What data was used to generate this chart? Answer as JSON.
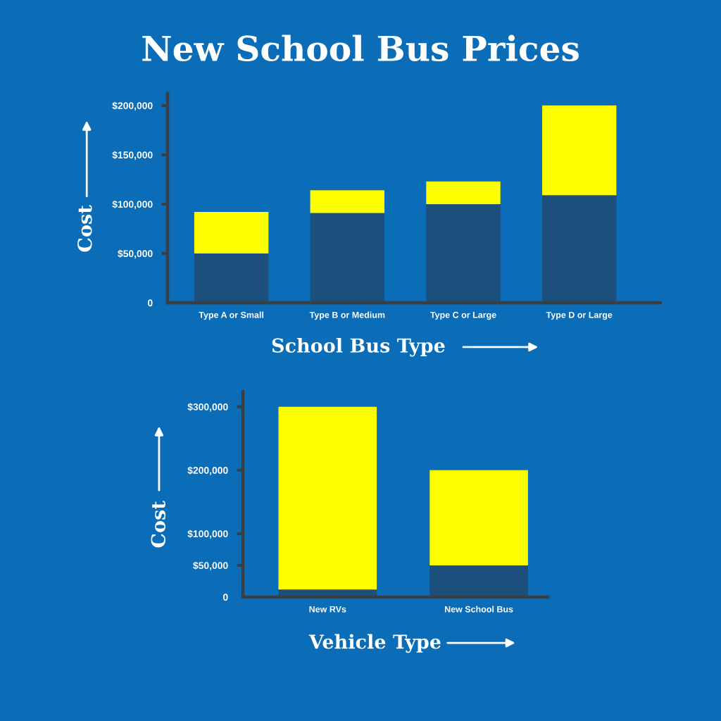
{
  "chart_data": [
    {
      "type": "bar",
      "stacked": true,
      "title": "New School Bus Prices",
      "xlabel": "School Bus Type",
      "ylabel": "Cost",
      "categories": [
        "Type A or Small",
        "Type B or Medium",
        "Type C or Large",
        "Type D or Large"
      ],
      "series": [
        {
          "color": "#1c4f7c",
          "values": [
            50000,
            91000,
            100000,
            109000
          ]
        },
        {
          "color": "#ffff00",
          "values": [
            42000,
            23000,
            23000,
            91000
          ]
        }
      ],
      "ylim": [
        0,
        212000
      ],
      "yticks": [
        0,
        {
          "value": 50000,
          "label": "$50,000"
        },
        {
          "value": 100000,
          "label": "$100,000"
        },
        {
          "value": 150000,
          "label": "$150,000"
        },
        {
          "value": 200000,
          "label": "$200,000"
        }
      ]
    },
    {
      "type": "bar",
      "stacked": true,
      "xlabel": "Vehicle Type",
      "ylabel": "Cost",
      "categories": [
        "New RVs",
        "New School Bus"
      ],
      "series": [
        {
          "color": "#1c4f7c",
          "values": [
            12000,
            50000
          ]
        },
        {
          "color": "#ffff00",
          "values": [
            288000,
            150000
          ]
        }
      ],
      "ylim": [
        0,
        324000
      ],
      "yticks": [
        0,
        {
          "value": 50000,
          "label": "$50,000"
        },
        {
          "value": 100000,
          "label": "$100,000"
        },
        {
          "value": 200000,
          "label": "$200,000"
        },
        {
          "value": 300000,
          "label": "$300,000"
        }
      ]
    }
  ]
}
